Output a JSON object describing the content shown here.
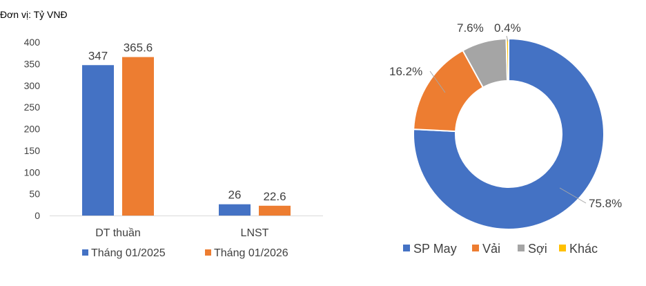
{
  "unit_note": "Đơn vị: Tỷ VNĐ",
  "chart_data": [
    {
      "type": "bar",
      "categories": [
        "DT thuần",
        "LNST"
      ],
      "series": [
        {
          "name": "Tháng 01/2025",
          "values": [
            347,
            26
          ],
          "color": "#4472C4"
        },
        {
          "name": "Tháng 01/2026",
          "values": [
            365.6,
            22.6
          ],
          "color": "#ED7D31"
        }
      ],
      "data_labels": [
        [
          "347",
          "26"
        ],
        [
          "365.6",
          "22.6"
        ]
      ],
      "ylim": [
        0,
        400
      ],
      "yticks": [
        0,
        50,
        100,
        150,
        200,
        250,
        300,
        350,
        400
      ],
      "grid": false,
      "legend": "bottom"
    },
    {
      "type": "pie",
      "variant": "donut",
      "slices": [
        {
          "label": "SP May",
          "value": 75.8,
          "display": "75.8%",
          "color": "#4472C4"
        },
        {
          "label": "Vải",
          "value": 16.2,
          "display": "16.2%",
          "color": "#ED7D31"
        },
        {
          "label": "Sợi",
          "value": 7.6,
          "display": "7.6%",
          "color": "#A5A5A5"
        },
        {
          "label": "Khác",
          "value": 0.4,
          "display": "0.4%",
          "color": "#FFC000"
        }
      ],
      "legend": "bottom"
    }
  ]
}
